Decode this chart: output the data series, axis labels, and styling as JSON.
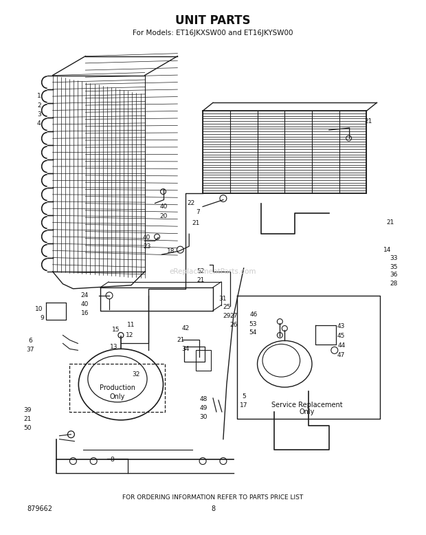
{
  "title": "UNIT PARTS",
  "subtitle": "For Models: ET16JKXSW00 and ET16JKYSW00",
  "footer_text": "FOR ORDERING INFORMATION REFER TO PARTS PRICE LIST",
  "part_number": "879662",
  "page_number": "8",
  "watermark": "eReplacementParts.com",
  "bg_color": "#ffffff",
  "title_fontsize": 12,
  "subtitle_fontsize": 7.5,
  "footer_fontsize": 6.5,
  "fig_width": 6.2,
  "fig_height": 7.78,
  "dpi": 100
}
